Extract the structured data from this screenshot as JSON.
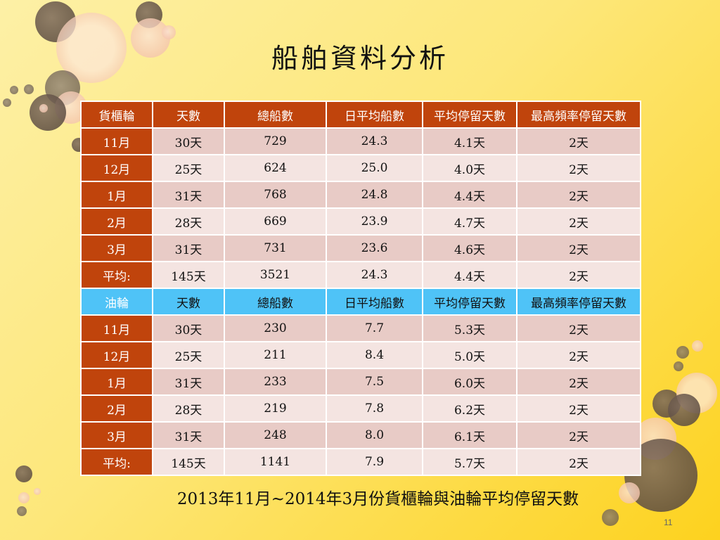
{
  "title": "船舶資料分析",
  "sections": [
    {
      "header": [
        "貨櫃輪",
        "天數",
        "總船數",
        "日平均船數",
        "平均停留天數",
        "最高頻率停留天數"
      ],
      "rows": [
        [
          "11月",
          "30天",
          "729",
          "24.3",
          "4.1天",
          "2天"
        ],
        [
          "12月",
          "25天",
          "624",
          "25.0",
          "4.0天",
          "2天"
        ],
        [
          "1月",
          "31天",
          "768",
          "24.8",
          "4.4天",
          "2天"
        ],
        [
          "2月",
          "28天",
          "669",
          "23.9",
          "4.7天",
          "2天"
        ],
        [
          "3月",
          "31天",
          "731",
          "23.6",
          "4.6天",
          "2天"
        ],
        [
          "平均:",
          "145天",
          "3521",
          "24.3",
          "4.4天",
          "2天"
        ]
      ]
    },
    {
      "header": [
        "油輪",
        "天數",
        "總船數",
        "日平均船數",
        "平均停留天數",
        "最高頻率停留天數"
      ],
      "rows": [
        [
          "11月",
          "30天",
          "230",
          "7.7",
          "5.3天",
          "2天"
        ],
        [
          "12月",
          "25天",
          "211",
          "8.4",
          "5.0天",
          "2天"
        ],
        [
          "1月",
          "31天",
          "233",
          "7.5",
          "6.0天",
          "2天"
        ],
        [
          "2月",
          "28天",
          "219",
          "7.8",
          "6.2天",
          "2天"
        ],
        [
          "3月",
          "31天",
          "248",
          "8.0",
          "6.1天",
          "2天"
        ],
        [
          "平均:",
          "145天",
          "1141",
          "7.9",
          "5.7天",
          "2天"
        ]
      ]
    }
  ],
  "caption": "2013年11月~2014年3月份貨櫃輪與油輪平均停留天數",
  "page_number": "11",
  "colors": {
    "header_brown": "#c0440c",
    "header_blue": "#4fc3f7",
    "row_dark": "#e8cbc6",
    "row_light": "#f4e4e1",
    "background": "#fde77a"
  }
}
